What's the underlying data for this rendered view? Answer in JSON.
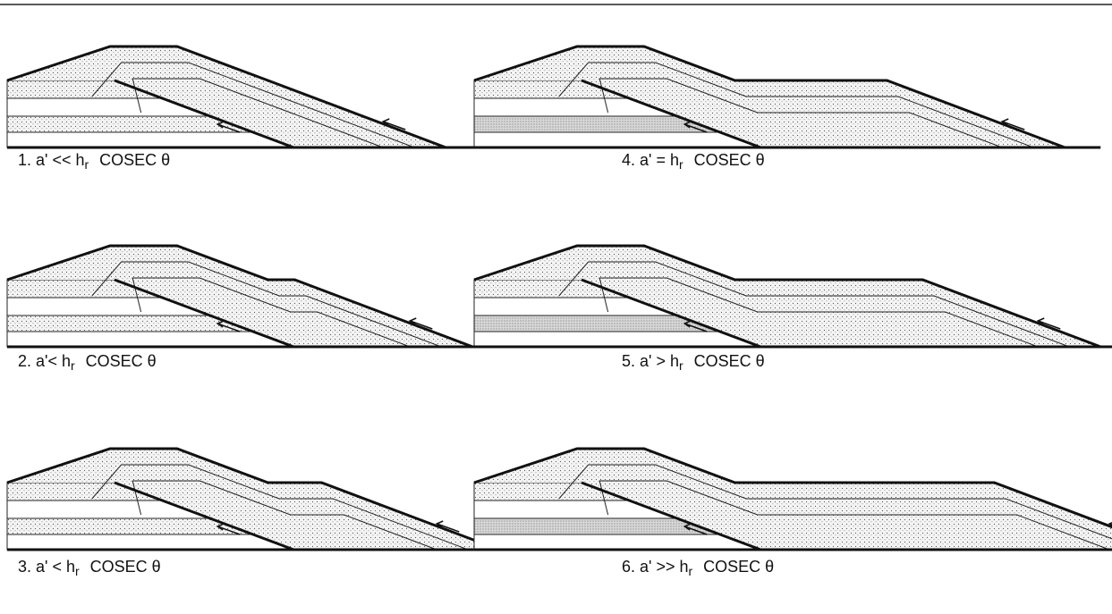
{
  "panels": [
    {
      "label": "1.  a' << h",
      "subscript": "r",
      "tail": "COSEC  θ"
    },
    {
      "label": "2.  a'< h",
      "subscript": "r",
      "tail": "COSEC  θ"
    },
    {
      "label": "3.  a' < h",
      "subscript": "r",
      "tail": "COSEC  θ"
    },
    {
      "label": "4.  a' = h",
      "subscript": "r",
      "tail": "COSEC  θ"
    },
    {
      "label": "5.  a' > h",
      "subscript": "r",
      "tail": "COSEC  θ"
    },
    {
      "label": "6.  a'  >> h",
      "subscript": "r",
      "tail": "COSEC  θ"
    }
  ]
}
